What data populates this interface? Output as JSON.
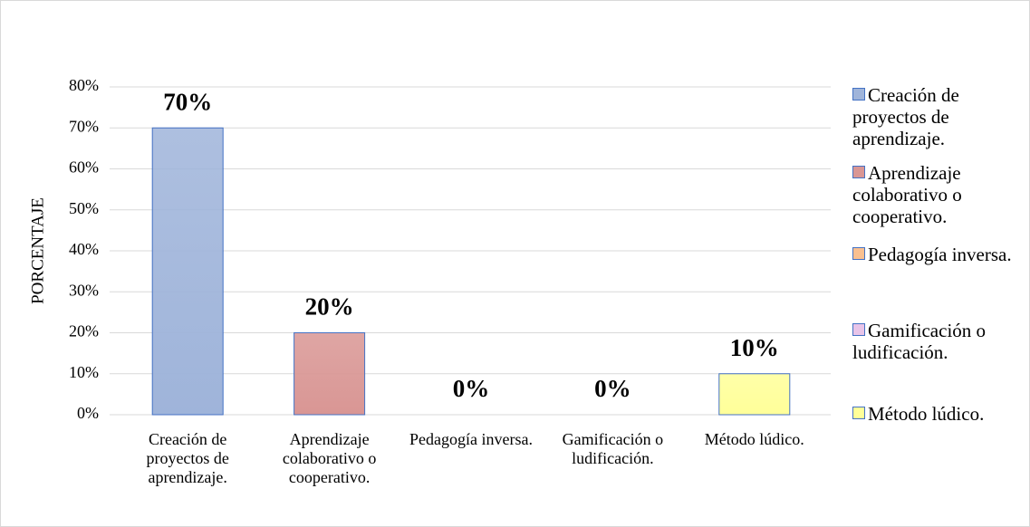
{
  "chart_data": {
    "type": "bar",
    "y_label": "PORCENTAJE",
    "categories": [
      "Creación de proyectos de aprendizaje.",
      "Aprendizaje colaborativo o cooperativo.",
      "Pedagogía inversa.",
      "Gamificación o ludificación.",
      "Método lúdico."
    ],
    "values": [
      70,
      20,
      0,
      0,
      10
    ],
    "value_labels": [
      "70%",
      "20%",
      "0%",
      "0%",
      "10%"
    ],
    "colors": [
      "#9fb4da",
      "#d99694",
      "#fac090",
      "#e8c4e8",
      "#ffff99"
    ],
    "ylim": [
      0,
      80
    ],
    "yticks": [
      {
        "value": 0,
        "label": "0%"
      },
      {
        "value": 10,
        "label": "10%"
      },
      {
        "value": 20,
        "label": "20%"
      },
      {
        "value": 30,
        "label": "30%"
      },
      {
        "value": 40,
        "label": "40%"
      },
      {
        "value": 50,
        "label": "50%"
      },
      {
        "value": 60,
        "label": "60%"
      },
      {
        "value": 70,
        "label": "70%"
      },
      {
        "value": 80,
        "label": "80%"
      }
    ],
    "grid": true,
    "legend": "right"
  }
}
